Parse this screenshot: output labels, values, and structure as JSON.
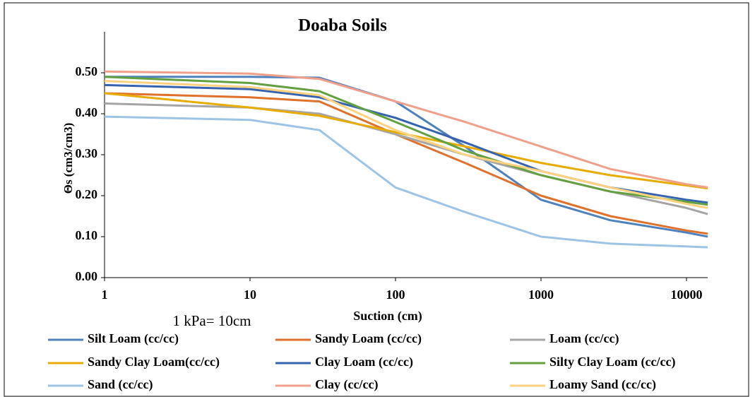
{
  "chart_data": {
    "type": "line",
    "title": "Doaba Soils",
    "x_label": "Suction (cm)",
    "y_label": "Θs (cm3/cm3)",
    "annotation": "1 kPa= 10cm",
    "x_scale": "log",
    "xlim": [
      1,
      14000
    ],
    "xticks": [
      1,
      10,
      100,
      1000,
      10000
    ],
    "ylim": [
      0,
      0.6
    ],
    "yticks": [
      {
        "value": 0,
        "label": "0.00"
      },
      {
        "value": 0.1,
        "label": "0.10"
      },
      {
        "value": 0.2,
        "label": "0.20"
      },
      {
        "value": 0.3,
        "label": "0.30"
      },
      {
        "value": 0.4,
        "label": "0.40"
      },
      {
        "value": 0.5,
        "label": "0.50"
      }
    ],
    "grid": false,
    "legend": "bottom",
    "x": [
      1,
      10,
      30,
      100,
      300,
      1000,
      3000,
      10000,
      14000
    ],
    "series": [
      {
        "name": "Silt Loam (cc/cc)",
        "color": "#4f81bd",
        "values": [
          0.49,
          0.49,
          0.488,
          0.43,
          0.32,
          0.19,
          0.14,
          0.11,
          0.1
        ]
      },
      {
        "name": "Sandy Loam (cc/cc)",
        "color": "#e0712c",
        "values": [
          0.45,
          0.44,
          0.43,
          0.35,
          0.28,
          0.2,
          0.15,
          0.115,
          0.107
        ]
      },
      {
        "name": "Loam (cc/cc)",
        "color": "#a5a5a5",
        "values": [
          0.425,
          0.415,
          0.4,
          0.35,
          0.3,
          0.25,
          0.21,
          0.17,
          0.155
        ]
      },
      {
        "name": "Sandy Clay Loam(cc/cc)",
        "color": "#e8ac00",
        "values": [
          0.45,
          0.415,
          0.395,
          0.355,
          0.32,
          0.28,
          0.25,
          0.225,
          0.218
        ]
      },
      {
        "name": "Clay Loam (cc/cc)",
        "color": "#3563b0",
        "values": [
          0.47,
          0.46,
          0.44,
          0.39,
          0.33,
          0.26,
          0.22,
          0.19,
          0.183
        ]
      },
      {
        "name": "Silty Clay Loam (cc/cc)",
        "color": "#62a040",
        "values": [
          0.49,
          0.475,
          0.455,
          0.38,
          0.31,
          0.25,
          0.21,
          0.185,
          0.178
        ]
      },
      {
        "name": "Sand (cc/cc)",
        "color": "#9dc3e6",
        "values": [
          0.393,
          0.385,
          0.36,
          0.22,
          0.16,
          0.1,
          0.083,
          0.076,
          0.074
        ]
      },
      {
        "name": "Clay (cc/cc)",
        "color": "#f0a08a",
        "values": [
          0.503,
          0.498,
          0.485,
          0.43,
          0.38,
          0.32,
          0.265,
          0.228,
          0.22
        ]
      },
      {
        "name": "Loamy Sand (cc/cc)",
        "color": "#ffd27f",
        "values": [
          0.48,
          0.465,
          0.445,
          0.36,
          0.3,
          0.26,
          0.22,
          0.18,
          0.17
        ]
      }
    ]
  }
}
